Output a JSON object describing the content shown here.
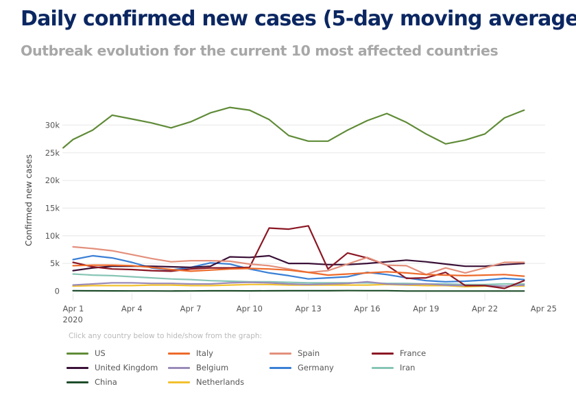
{
  "header": {
    "title": "Daily confirmed new cases (5-day moving average)",
    "subtitle": "Outbreak evolution for the current 10 most affected countries"
  },
  "legend_hint": "Click any country below to hide/show from the graph:",
  "chart_data": {
    "type": "line",
    "title": "Daily confirmed new cases (5-day moving average)",
    "subtitle": "Outbreak evolution for the current 10 most affected countries",
    "xlabel": "",
    "ylabel": "Confirmed new cases",
    "x_start": "Apr 1",
    "x": [
      "Apr 1",
      "Apr 2",
      "Apr 3",
      "Apr 4",
      "Apr 5",
      "Apr 6",
      "Apr 7",
      "Apr 8",
      "Apr 9",
      "Apr 10",
      "Apr 11",
      "Apr 12",
      "Apr 13",
      "Apr 14",
      "Apr 15",
      "Apr 16",
      "Apr 17",
      "Apr 18",
      "Apr 19",
      "Apr 20",
      "Apr 21",
      "Apr 22",
      "Apr 23",
      "Apr 24"
    ],
    "x_ticks": [
      {
        "day": 0,
        "label": "Apr 1",
        "sublabel": "2020"
      },
      {
        "day": 3,
        "label": "Apr 4"
      },
      {
        "day": 6,
        "label": "Apr 7"
      },
      {
        "day": 9,
        "label": "Apr 10"
      },
      {
        "day": 12,
        "label": "Apr 13"
      },
      {
        "day": 15,
        "label": "Apr 16"
      },
      {
        "day": 18,
        "label": "Apr 19"
      },
      {
        "day": 21,
        "label": "Apr 22"
      },
      {
        "day": 24,
        "label": "Apr 25"
      }
    ],
    "xlim_days": [
      -0.5,
      24.3
    ],
    "ylim": [
      0,
      34000
    ],
    "y_ticks": [
      {
        "value": 0,
        "label": "0"
      },
      {
        "value": 5000,
        "label": "5k"
      },
      {
        "value": 10000,
        "label": "10k"
      },
      {
        "value": 15000,
        "label": "15k"
      },
      {
        "value": 20000,
        "label": "20k"
      },
      {
        "value": 25000,
        "label": "25k"
      },
      {
        "value": 30000,
        "label": "30k"
      }
    ],
    "grid": true,
    "legend_position": "bottom",
    "series": [
      {
        "name": "US",
        "color": "#5f8b37",
        "lead_in": {
          "day": -0.5,
          "value": 25900
        },
        "values": [
          27400,
          29100,
          31800,
          31100,
          30400,
          29500,
          30600,
          32200,
          33200,
          32700,
          31000,
          28100,
          27100,
          27100,
          29100,
          30800,
          32100,
          30500,
          28400,
          26600,
          27300,
          28400,
          31300,
          32700
        ]
      },
      {
        "name": "Italy",
        "color": "#ed6a2a",
        "values": [
          4600,
          4700,
          4700,
          4600,
          4300,
          3900,
          3600,
          3800,
          4000,
          4100,
          4000,
          3800,
          3400,
          2900,
          3100,
          3300,
          3500,
          3300,
          3000,
          2900,
          2800,
          2900,
          3000,
          2700
        ]
      },
      {
        "name": "Spain",
        "color": "#e38f7b",
        "values": [
          8000,
          7700,
          7300,
          6600,
          5900,
          5300,
          5500,
          5500,
          5400,
          4900,
          4600,
          4000,
          3400,
          3700,
          4900,
          6100,
          4700,
          4600,
          3000,
          4200,
          3300,
          4200,
          5200,
          5200
        ]
      },
      {
        "name": "France",
        "color": "#8a1623",
        "values": [
          5200,
          4400,
          4000,
          3900,
          3700,
          3600,
          4000,
          4200,
          4200,
          4300,
          11400,
          11200,
          11800,
          4000,
          6900,
          6000,
          4700,
          2300,
          2400,
          3400,
          1000,
          1000,
          500,
          1900
        ]
      },
      {
        "name": "United Kingdom",
        "color": "#3a1037",
        "values": [
          3700,
          4200,
          4500,
          4500,
          4500,
          4400,
          4300,
          4500,
          6200,
          6100,
          6400,
          5000,
          5000,
          4800,
          4800,
          5000,
          5300,
          5600,
          5300,
          4900,
          4500,
          4500,
          4800,
          5000
        ]
      },
      {
        "name": "Belgium",
        "color": "#9a8ab8",
        "values": [
          1100,
          1300,
          1500,
          1500,
          1400,
          1400,
          1300,
          1300,
          1500,
          1600,
          1500,
          1300,
          1200,
          1300,
          1400,
          1700,
          1300,
          1200,
          1300,
          1100,
          1000,
          1000,
          900,
          1100
        ]
      },
      {
        "name": "Germany",
        "color": "#3a7fd5",
        "values": [
          5700,
          6400,
          6000,
          5200,
          4200,
          3800,
          4300,
          5100,
          4900,
          4000,
          3300,
          2800,
          2200,
          2400,
          2600,
          3400,
          3000,
          2400,
          1900,
          1700,
          1800,
          2000,
          2300,
          2100
        ]
      },
      {
        "name": "Iran",
        "color": "#86c5b5",
        "values": [
          3100,
          2900,
          2800,
          2600,
          2400,
          2200,
          2100,
          1900,
          1800,
          1700,
          1700,
          1600,
          1500,
          1500,
          1500,
          1500,
          1400,
          1400,
          1300,
          1300,
          1200,
          1200,
          1300,
          1300
        ]
      },
      {
        "name": "China",
        "color": "#1e4d2b",
        "values": [
          80,
          60,
          50,
          40,
          40,
          30,
          40,
          60,
          60,
          50,
          60,
          80,
          70,
          80,
          100,
          90,
          90,
          30,
          30,
          20,
          20,
          20,
          20,
          20
        ]
      },
      {
        "name": "Netherlands",
        "color": "#f2c12e",
        "values": [
          900,
          1000,
          1000,
          1000,
          1100,
          1100,
          1000,
          1000,
          1100,
          1200,
          1200,
          1100,
          1100,
          1100,
          1100,
          1100,
          1200,
          1100,
          1000,
          1000,
          800,
          900,
          900,
          900
        ]
      }
    ]
  },
  "legend": [
    {
      "name": "US",
      "color": "#5f8b37"
    },
    {
      "name": "Italy",
      "color": "#ed6a2a"
    },
    {
      "name": "Spain",
      "color": "#e38f7b"
    },
    {
      "name": "France",
      "color": "#8a1623"
    },
    {
      "name": "United Kingdom",
      "color": "#3a1037"
    },
    {
      "name": "Belgium",
      "color": "#9a8ab8"
    },
    {
      "name": "Germany",
      "color": "#3a7fd5"
    },
    {
      "name": "Iran",
      "color": "#86c5b5"
    },
    {
      "name": "China",
      "color": "#1e4d2b"
    },
    {
      "name": "Netherlands",
      "color": "#f2c12e"
    }
  ]
}
